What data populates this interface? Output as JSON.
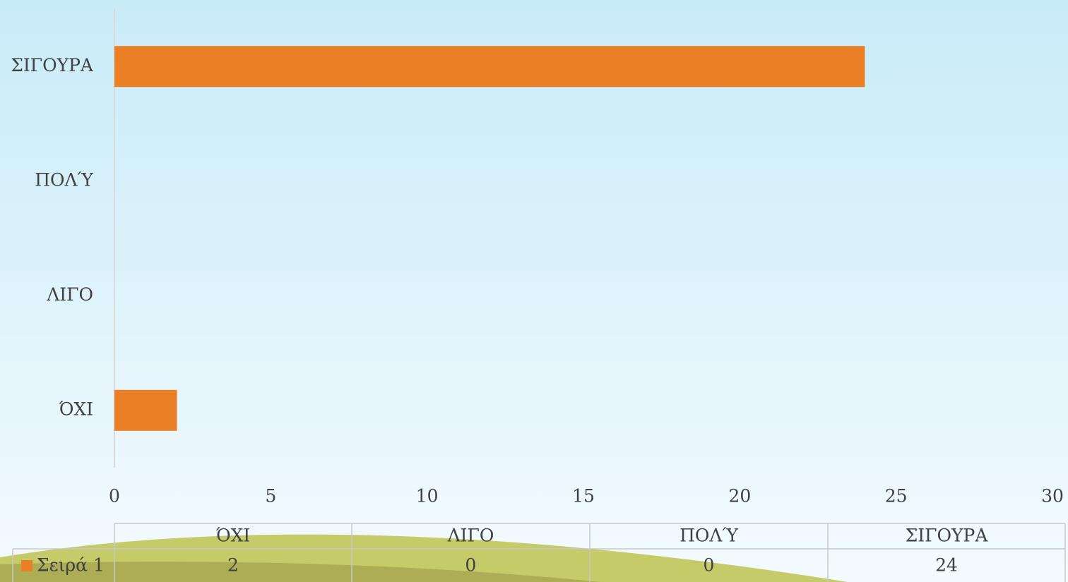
{
  "chart_data": {
    "type": "bar",
    "orientation": "horizontal",
    "categories": [
      "ΌΧΙ",
      "ΛΙΓΟ",
      "ΠΟΛΎ",
      "ΣΙΓΟΥΡΑ"
    ],
    "series": [
      {
        "name": "Σειρά 1",
        "color": "#ea7f26",
        "values": [
          2,
          0,
          0,
          24
        ]
      }
    ],
    "xlim": [
      0,
      30
    ],
    "xticks": [
      0,
      5,
      10,
      15,
      20,
      25,
      30
    ],
    "grid": false,
    "data_table": true
  }
}
